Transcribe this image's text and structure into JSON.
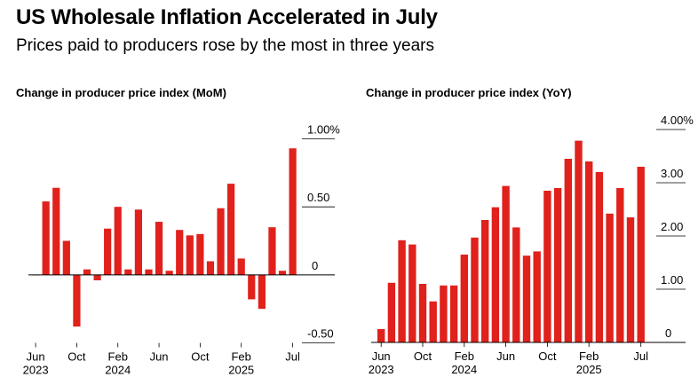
{
  "header": {
    "title": "US Wholesale Inflation Accelerated in July",
    "subtitle": "Prices paid to producers rose by the most in three years"
  },
  "colors": {
    "bar": "#e0211c",
    "axis": "#000000"
  },
  "chart_data": [
    {
      "type": "bar",
      "title": "Change in producer price index (MoM)",
      "ylim": [
        -0.5,
        1.0
      ],
      "y_ticks": [
        {
          "value": 1.0,
          "label": "1.00%"
        },
        {
          "value": 0.5,
          "label": "0.50"
        },
        {
          "value": 0.0,
          "label": "0"
        },
        {
          "value": -0.5,
          "label": "-0.50"
        }
      ],
      "x_ticks": [
        {
          "index": 0,
          "label": "Jun",
          "year": "2023"
        },
        {
          "index": 4,
          "label": "Oct",
          "year": ""
        },
        {
          "index": 8,
          "label": "Feb",
          "year": "2024"
        },
        {
          "index": 12,
          "label": "Jun",
          "year": ""
        },
        {
          "index": 16,
          "label": "Oct",
          "year": ""
        },
        {
          "index": 20,
          "label": "Feb",
          "year": "2025"
        },
        {
          "index": 25,
          "label": "Jul",
          "year": ""
        }
      ],
      "categories": [
        "2023-06",
        "2023-07",
        "2023-08",
        "2023-09",
        "2023-10",
        "2023-11",
        "2023-12",
        "2024-01",
        "2024-02",
        "2024-03",
        "2024-04",
        "2024-05",
        "2024-06",
        "2024-07",
        "2024-08",
        "2024-09",
        "2024-10",
        "2024-11",
        "2024-12",
        "2025-01",
        "2025-02",
        "2025-03",
        "2025-04",
        "2025-05",
        "2025-06",
        "2025-07"
      ],
      "values": [
        0.0,
        0.54,
        0.64,
        0.25,
        -0.38,
        0.04,
        -0.04,
        0.34,
        0.5,
        0.04,
        0.48,
        0.04,
        0.39,
        0.03,
        0.33,
        0.29,
        0.3,
        0.1,
        0.49,
        0.67,
        0.12,
        -0.18,
        -0.25,
        0.35,
        0.03,
        0.93
      ]
    },
    {
      "type": "bar",
      "title": "Change in producer price index (YoY)",
      "ylim": [
        0,
        4.0
      ],
      "y_ticks": [
        {
          "value": 4.0,
          "label": "4.00%"
        },
        {
          "value": 3.0,
          "label": "3.00"
        },
        {
          "value": 2.0,
          "label": "2.00"
        },
        {
          "value": 1.0,
          "label": "1.00"
        },
        {
          "value": 0.0,
          "label": "0"
        }
      ],
      "x_ticks": [
        {
          "index": 0,
          "label": "Jun",
          "year": "2023"
        },
        {
          "index": 4,
          "label": "Oct",
          "year": ""
        },
        {
          "index": 8,
          "label": "Feb",
          "year": "2024"
        },
        {
          "index": 12,
          "label": "Jun",
          "year": ""
        },
        {
          "index": 16,
          "label": "Oct",
          "year": ""
        },
        {
          "index": 20,
          "label": "Feb",
          "year": "2025"
        },
        {
          "index": 25,
          "label": "Jul",
          "year": ""
        }
      ],
      "categories": [
        "2023-06",
        "2023-07",
        "2023-08",
        "2023-09",
        "2023-10",
        "2023-11",
        "2023-12",
        "2024-01",
        "2024-02",
        "2024-03",
        "2024-04",
        "2024-05",
        "2024-06",
        "2024-07",
        "2024-08",
        "2024-09",
        "2024-10",
        "2024-11",
        "2024-12",
        "2025-01",
        "2025-02",
        "2025-03",
        "2025-04",
        "2025-05",
        "2025-06",
        "2025-07"
      ],
      "values": [
        0.25,
        1.12,
        1.92,
        1.84,
        1.1,
        0.77,
        1.07,
        1.07,
        1.65,
        1.97,
        2.3,
        2.54,
        2.94,
        2.16,
        1.63,
        1.71,
        2.85,
        2.9,
        3.45,
        3.79,
        3.4,
        3.2,
        2.42,
        2.9,
        2.35,
        3.3
      ]
    }
  ]
}
